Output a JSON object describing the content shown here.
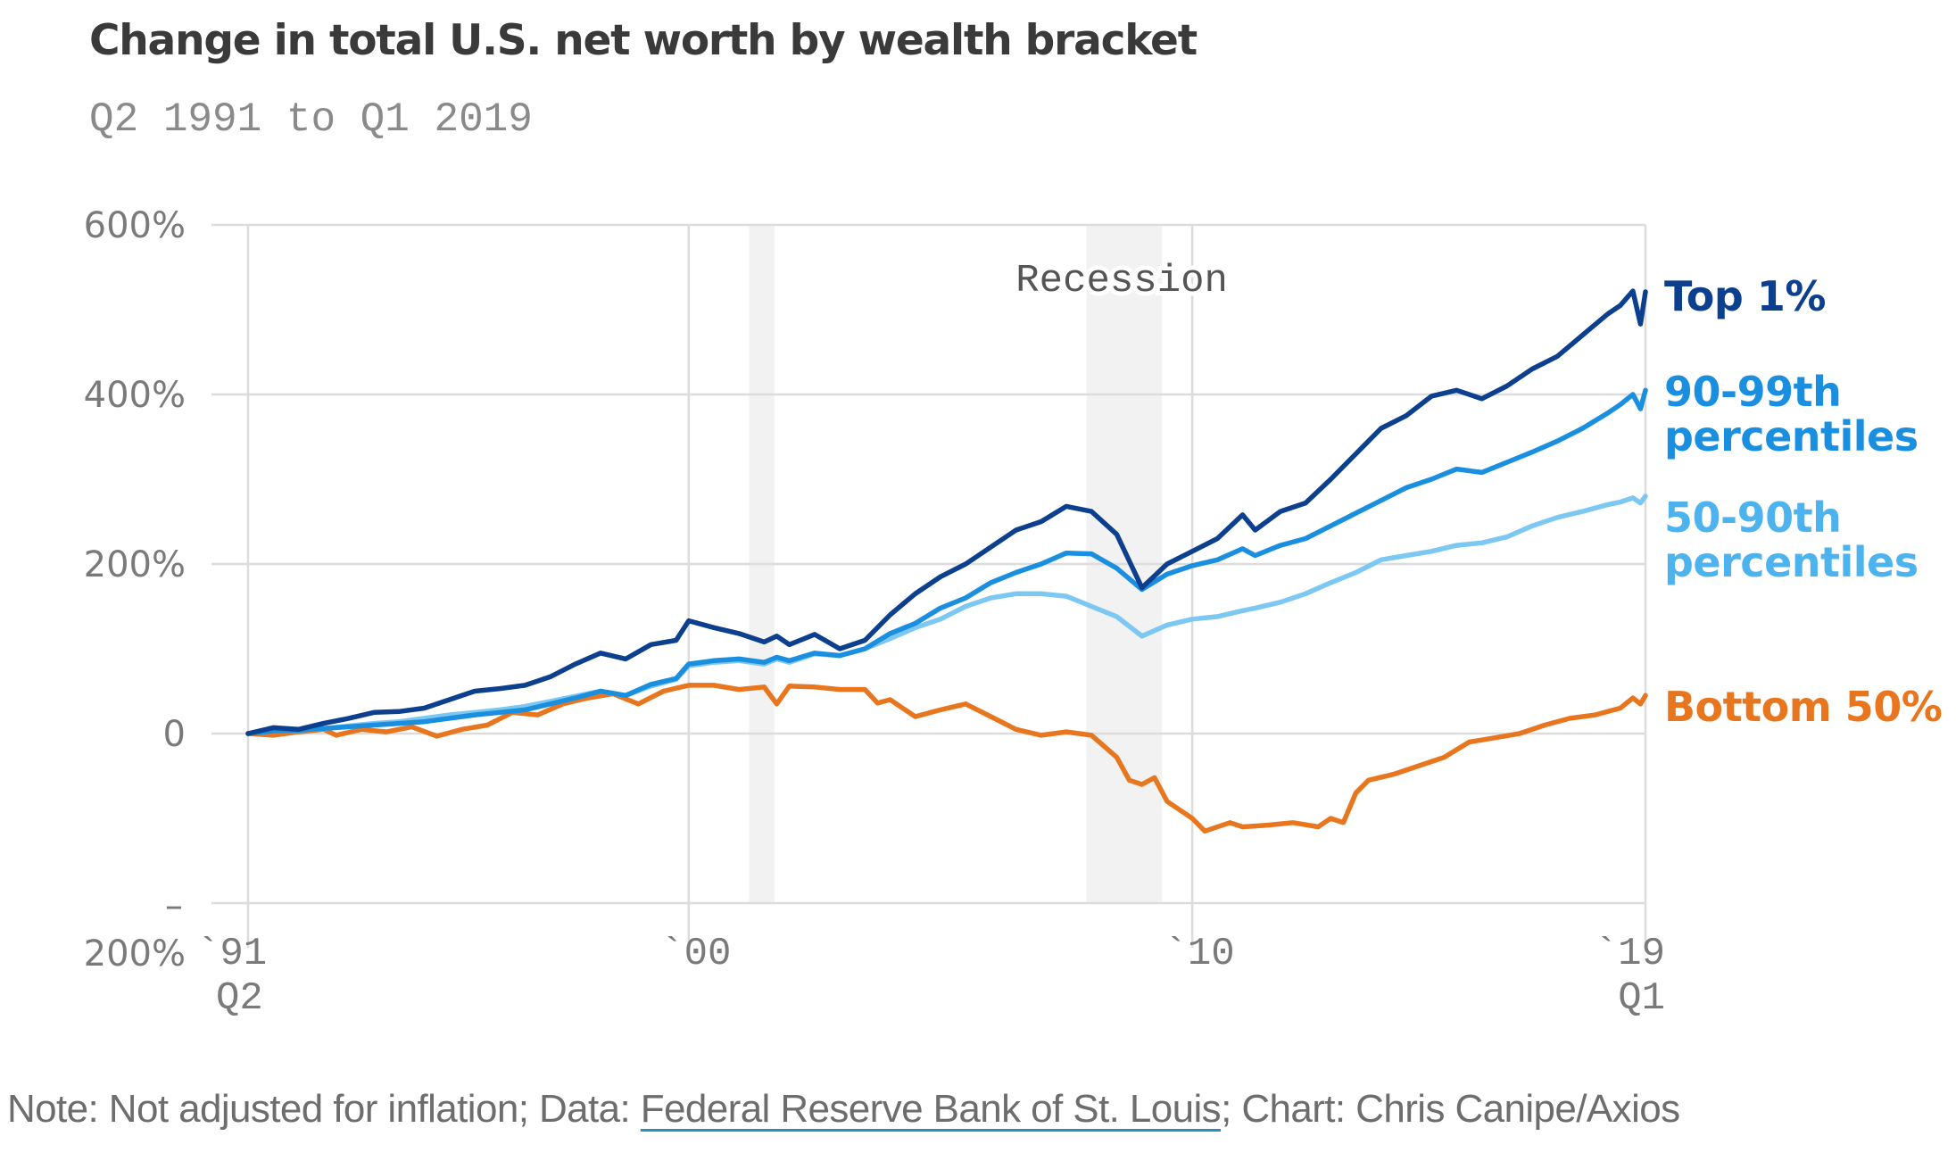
{
  "chart_data": {
    "type": "line",
    "title": "Change in total U.S. net worth by wealth bracket",
    "subtitle": "Q2 1991 to Q1 2019",
    "xlabel": "",
    "ylabel": "",
    "xlim": [
      1991.25,
      2019.0
    ],
    "ylim": [
      -200,
      600
    ],
    "grid": true,
    "legend": "direct-labels-right",
    "y_ticks": [
      {
        "value": 600,
        "label": "600%"
      },
      {
        "value": 400,
        "label": "400%"
      },
      {
        "value": 200,
        "label": "200%"
      },
      {
        "value": 0,
        "label": "0"
      },
      {
        "value": -200,
        "label": "–\n200%"
      }
    ],
    "x_ticks": [
      {
        "value": 1991.25,
        "label": "`91",
        "sublabel": "Q2"
      },
      {
        "value": 2000.0,
        "label": "`00",
        "sublabel": ""
      },
      {
        "value": 2010.0,
        "label": "`10",
        "sublabel": ""
      },
      {
        "value": 2019.0,
        "label": "`19",
        "sublabel": "Q1"
      }
    ],
    "y_tick_neg_dash": "–",
    "y_tick_neg_label": "200%",
    "annotations": [
      {
        "text": "Recession",
        "x": 2008.6
      }
    ],
    "recessions": [
      {
        "start": 2001.2,
        "end": 2001.7
      },
      {
        "start": 2007.9,
        "end": 2009.4
      }
    ],
    "series": [
      {
        "name": "Top 1%",
        "label_lines": [
          "Top 1%"
        ],
        "color": "#0d3f8f",
        "x": [
          1991.25,
          1991.75,
          1992.25,
          1992.75,
          1993.25,
          1993.75,
          1994.25,
          1994.75,
          1995.25,
          1995.75,
          1996.25,
          1996.75,
          1997.25,
          1997.75,
          1998.25,
          1998.75,
          1999.25,
          1999.75,
          2000.0,
          2000.5,
          2001.0,
          2001.5,
          2001.75,
          2002.0,
          2002.5,
          2003.0,
          2003.5,
          2004.0,
          2004.5,
          2005.0,
          2005.5,
          2006.0,
          2006.5,
          2007.0,
          2007.5,
          2008.0,
          2008.5,
          2009.0,
          2009.5,
          2010.0,
          2010.5,
          2011.0,
          2011.25,
          2011.75,
          2012.25,
          2012.75,
          2013.25,
          2013.75,
          2014.25,
          2014.75,
          2015.25,
          2015.75,
          2016.25,
          2016.75,
          2017.25,
          2017.75,
          2018.25,
          2018.5,
          2018.75,
          2018.9,
          2019.0
        ],
        "values": [
          0,
          7,
          5,
          12,
          18,
          25,
          26,
          30,
          40,
          50,
          53,
          57,
          67,
          82,
          95,
          88,
          105,
          110,
          133,
          125,
          118,
          108,
          115,
          105,
          117,
          100,
          110,
          140,
          165,
          185,
          200,
          220,
          240,
          250,
          268,
          262,
          235,
          172,
          200,
          215,
          230,
          258,
          240,
          262,
          272,
          300,
          330,
          360,
          375,
          398,
          405,
          395,
          410,
          430,
          445,
          470,
          495,
          505,
          522,
          483,
          521
        ]
      },
      {
        "name": "90-99th percentiles",
        "label_lines": [
          "90-99th",
          "percentiles"
        ],
        "color": "#1a8fe0",
        "x": [
          1991.25,
          1991.75,
          1992.25,
          1992.75,
          1993.25,
          1993.75,
          1994.25,
          1994.75,
          1995.25,
          1995.75,
          1996.25,
          1996.75,
          1997.25,
          1997.75,
          1998.25,
          1998.75,
          1999.25,
          1999.75,
          2000.0,
          2000.5,
          2001.0,
          2001.5,
          2001.75,
          2002.0,
          2002.5,
          2003.0,
          2003.5,
          2004.0,
          2004.5,
          2005.0,
          2005.5,
          2006.0,
          2006.5,
          2007.0,
          2007.5,
          2008.0,
          2008.5,
          2009.0,
          2009.5,
          2010.0,
          2010.5,
          2011.0,
          2011.25,
          2011.75,
          2012.25,
          2012.75,
          2013.25,
          2013.75,
          2014.25,
          2014.75,
          2015.25,
          2015.75,
          2016.25,
          2016.75,
          2017.25,
          2017.75,
          2018.25,
          2018.5,
          2018.75,
          2018.9,
          2019.0
        ],
        "values": [
          0,
          3,
          4,
          6,
          8,
          10,
          12,
          14,
          18,
          22,
          25,
          28,
          35,
          42,
          50,
          45,
          58,
          65,
          82,
          86,
          88,
          84,
          90,
          86,
          95,
          92,
          100,
          118,
          130,
          148,
          160,
          178,
          190,
          200,
          213,
          212,
          195,
          170,
          188,
          198,
          205,
          218,
          210,
          222,
          230,
          245,
          260,
          275,
          290,
          300,
          312,
          308,
          320,
          332,
          345,
          360,
          378,
          388,
          400,
          383,
          405
        ]
      },
      {
        "name": "50-90th percentiles",
        "label_lines": [
          "50-90th",
          "percentiles"
        ],
        "color": "#7cc8f2",
        "x": [
          1991.25,
          1991.75,
          1992.25,
          1992.75,
          1993.25,
          1993.75,
          1994.25,
          1994.75,
          1995.25,
          1995.75,
          1996.25,
          1996.75,
          1997.25,
          1997.75,
          1998.25,
          1998.75,
          1999.25,
          1999.75,
          2000.0,
          2000.5,
          2001.0,
          2001.5,
          2001.75,
          2002.0,
          2002.5,
          2003.0,
          2003.5,
          2004.0,
          2004.5,
          2005.0,
          2005.5,
          2006.0,
          2006.5,
          2007.0,
          2007.5,
          2008.0,
          2008.5,
          2009.0,
          2009.5,
          2010.0,
          2010.5,
          2011.0,
          2011.25,
          2011.75,
          2012.25,
          2012.75,
          2013.25,
          2013.75,
          2014.25,
          2014.75,
          2015.25,
          2015.75,
          2016.25,
          2016.75,
          2017.25,
          2017.75,
          2018.25,
          2018.5,
          2018.75,
          2018.9,
          2019.0
        ],
        "values": [
          0,
          3,
          4,
          6,
          9,
          12,
          14,
          18,
          22,
          25,
          28,
          32,
          38,
          44,
          50,
          45,
          56,
          64,
          80,
          84,
          86,
          82,
          88,
          84,
          94,
          92,
          100,
          112,
          125,
          135,
          150,
          160,
          165,
          165,
          162,
          150,
          138,
          115,
          128,
          135,
          138,
          145,
          148,
          155,
          165,
          178,
          190,
          205,
          210,
          215,
          222,
          225,
          232,
          245,
          255,
          262,
          270,
          273,
          278,
          272,
          280
        ]
      },
      {
        "name": "Bottom 50%",
        "label_lines": [
          "Bottom 50%"
        ],
        "color": "#e8761f",
        "x": [
          1991.25,
          1991.75,
          1992.25,
          1992.75,
          1993.0,
          1993.5,
          1994.0,
          1994.5,
          1995.0,
          1995.5,
          1996.0,
          1996.5,
          1997.0,
          1997.5,
          1998.0,
          1998.5,
          1999.0,
          1999.5,
          2000.0,
          2000.5,
          2001.0,
          2001.5,
          2001.75,
          2002.0,
          2002.5,
          2003.0,
          2003.5,
          2003.75,
          2004.0,
          2004.5,
          2005.0,
          2005.5,
          2006.0,
          2006.5,
          2007.0,
          2007.5,
          2008.0,
          2008.5,
          2008.75,
          2009.0,
          2009.25,
          2009.5,
          2010.0,
          2010.25,
          2010.75,
          2011.0,
          2011.5,
          2012.0,
          2012.5,
          2012.75,
          2013.0,
          2013.25,
          2013.5,
          2014.0,
          2014.5,
          2015.0,
          2015.5,
          2016.0,
          2016.5,
          2017.0,
          2017.5,
          2018.0,
          2018.5,
          2018.75,
          2018.9,
          2019.0
        ],
        "values": [
          0,
          -2,
          2,
          5,
          -2,
          5,
          2,
          8,
          -3,
          5,
          10,
          25,
          22,
          35,
          42,
          47,
          35,
          50,
          57,
          57,
          52,
          55,
          35,
          56,
          55,
          52,
          52,
          36,
          40,
          20,
          28,
          35,
          20,
          5,
          -2,
          2,
          -2,
          -28,
          -55,
          -60,
          -52,
          -80,
          -100,
          -115,
          -105,
          -110,
          -108,
          -105,
          -110,
          -100,
          -105,
          -70,
          -55,
          -48,
          -38,
          -28,
          -10,
          -5,
          0,
          10,
          18,
          22,
          30,
          42,
          35,
          45
        ]
      }
    ]
  },
  "note": {
    "prefix": "Note: Not adjusted for inflation; Data: ",
    "source_link": "Federal Reserve Bank of St. Louis",
    "suffix": "; Chart: Chris Canipe/Axios"
  }
}
